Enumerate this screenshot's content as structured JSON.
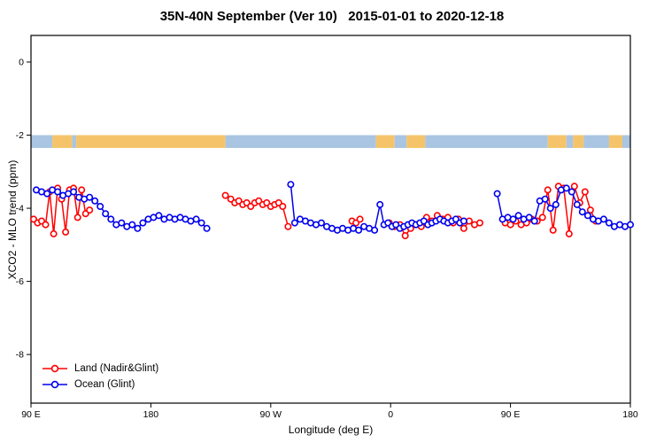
{
  "chart_data": {
    "type": "line",
    "title": "35N-40N September (Ver 10)   2015-01-01 to 2020-12-18",
    "xlabel": "Longitude (deg E)",
    "ylabel": "XCO2 - MLO trend (ppm)",
    "xlim": [
      90,
      540
    ],
    "ylim": [
      -9.33,
      0.727
    ],
    "grid": false,
    "x_ticks": [
      {
        "value": 90,
        "label": "90 E"
      },
      {
        "value": 180,
        "label": "180"
      },
      {
        "value": 270,
        "label": "90 W"
      },
      {
        "value": 360,
        "label": "0"
      },
      {
        "value": 450,
        "label": "90 E"
      },
      {
        "value": 540,
        "label": "180"
      }
    ],
    "y_ticks": [
      {
        "value": 0,
        "label": "0"
      },
      {
        "value": -2,
        "label": "-2"
      },
      {
        "value": -4,
        "label": "-4"
      },
      {
        "value": -6,
        "label": "-6"
      },
      {
        "value": -8,
        "label": "-8"
      }
    ],
    "band": {
      "y_top": -2.0,
      "y_bottom": -2.35,
      "colors": {
        "land": "#f5c46a",
        "ocean": "#a9c5e2"
      },
      "segments": [
        {
          "from": 90,
          "to": 106,
          "type": "ocean"
        },
        {
          "from": 106,
          "to": 121,
          "type": "land"
        },
        {
          "from": 121,
          "to": 124,
          "type": "ocean"
        },
        {
          "from": 124,
          "to": 236,
          "type": "land"
        },
        {
          "from": 236,
          "to": 349,
          "type": "ocean"
        },
        {
          "from": 349,
          "to": 363,
          "type": "land"
        },
        {
          "from": 363,
          "to": 372,
          "type": "ocean"
        },
        {
          "from": 372,
          "to": 386,
          "type": "land"
        },
        {
          "from": 386,
          "to": 478,
          "type": "ocean"
        },
        {
          "from": 478,
          "to": 492,
          "type": "land"
        },
        {
          "from": 492,
          "to": 497,
          "type": "ocean"
        },
        {
          "from": 497,
          "to": 505,
          "type": "land"
        },
        {
          "from": 505,
          "to": 524,
          "type": "ocean"
        },
        {
          "from": 524,
          "to": 534,
          "type": "land"
        },
        {
          "from": 534,
          "to": 540,
          "type": "ocean"
        }
      ]
    },
    "series": [
      {
        "name": "Land (Nadir&Glint)",
        "color": "#ff0000",
        "marker": "open-circle",
        "segments": [
          [
            [
              92,
              -4.3
            ],
            [
              95,
              -4.4
            ],
            [
              98,
              -4.35
            ],
            [
              101,
              -4.45
            ],
            [
              104,
              -3.55
            ],
            [
              107,
              -4.7
            ],
            [
              110,
              -3.45
            ],
            [
              113,
              -3.75
            ],
            [
              116,
              -4.65
            ],
            [
              119,
              -3.5
            ],
            [
              122,
              -3.45
            ],
            [
              125,
              -4.25
            ],
            [
              128,
              -3.5
            ],
            [
              131,
              -4.15
            ],
            [
              134,
              -4.05
            ]
          ],
          [
            [
              236,
              -3.65
            ],
            [
              240,
              -3.75
            ],
            [
              243,
              -3.85
            ],
            [
              246,
              -3.8
            ],
            [
              249,
              -3.9
            ],
            [
              252,
              -3.85
            ],
            [
              255,
              -3.95
            ],
            [
              258,
              -3.85
            ],
            [
              261,
              -3.8
            ],
            [
              264,
              -3.9
            ],
            [
              267,
              -3.85
            ],
            [
              270,
              -3.95
            ],
            [
              273,
              -3.9
            ],
            [
              276,
              -3.85
            ],
            [
              279,
              -3.95
            ],
            [
              283,
              -4.5
            ]
          ],
          [
            [
              331,
              -4.35
            ],
            [
              334,
              -4.4
            ],
            [
              337,
              -4.3
            ]
          ],
          [
            [
              359,
              -4.4
            ],
            [
              363,
              -4.5
            ],
            [
              367,
              -4.45
            ],
            [
              371,
              -4.75
            ],
            [
              375,
              -4.55
            ],
            [
              379,
              -4.45
            ],
            [
              383,
              -4.5
            ]
          ],
          [
            [
              387,
              -4.25
            ],
            [
              391,
              -4.35
            ],
            [
              395,
              -4.2
            ],
            [
              399,
              -4.3
            ],
            [
              403,
              -4.25
            ],
            [
              407,
              -4.4
            ],
            [
              411,
              -4.3
            ],
            [
              415,
              -4.55
            ],
            [
              419,
              -4.35
            ],
            [
              423,
              -4.45
            ],
            [
              427,
              -4.4
            ]
          ],
          [
            [
              446,
              -4.4
            ],
            [
              450,
              -4.45
            ],
            [
              454,
              -4.35
            ],
            [
              458,
              -4.45
            ],
            [
              462,
              -4.4
            ],
            [
              466,
              -4.3
            ],
            [
              470,
              -4.35
            ],
            [
              474,
              -4.25
            ],
            [
              478,
              -3.5
            ],
            [
              482,
              -4.6
            ],
            [
              486,
              -3.4
            ],
            [
              490,
              -3.45
            ],
            [
              494,
              -4.7
            ],
            [
              498,
              -3.4
            ],
            [
              502,
              -3.85
            ],
            [
              506,
              -3.55
            ],
            [
              510,
              -4.05
            ],
            [
              514,
              -4.35
            ]
          ]
        ]
      },
      {
        "name": "Ocean (Glint)",
        "color": "#0000ee",
        "marker": "open-circle",
        "segments": [
          [
            [
              94,
              -3.5
            ],
            [
              98,
              -3.55
            ],
            [
              102,
              -3.6
            ],
            [
              106,
              -3.5
            ],
            [
              110,
              -3.55
            ],
            [
              114,
              -3.65
            ],
            [
              118,
              -3.6
            ],
            [
              122,
              -3.55
            ],
            [
              126,
              -3.7
            ],
            [
              130,
              -3.75
            ],
            [
              134,
              -3.7
            ],
            [
              138,
              -3.8
            ],
            [
              142,
              -3.95
            ],
            [
              146,
              -4.15
            ],
            [
              150,
              -4.3
            ],
            [
              154,
              -4.45
            ],
            [
              158,
              -4.4
            ],
            [
              162,
              -4.5
            ],
            [
              166,
              -4.45
            ],
            [
              170,
              -4.55
            ],
            [
              174,
              -4.4
            ],
            [
              178,
              -4.3
            ],
            [
              182,
              -4.25
            ],
            [
              186,
              -4.2
            ],
            [
              190,
              -4.3
            ],
            [
              194,
              -4.25
            ],
            [
              198,
              -4.3
            ],
            [
              202,
              -4.25
            ],
            [
              206,
              -4.3
            ],
            [
              210,
              -4.35
            ],
            [
              214,
              -4.3
            ],
            [
              218,
              -4.4
            ],
            [
              222,
              -4.55
            ]
          ],
          [
            [
              285,
              -3.35
            ],
            [
              288,
              -4.4
            ],
            [
              292,
              -4.3
            ],
            [
              296,
              -4.35
            ],
            [
              300,
              -4.4
            ],
            [
              304,
              -4.45
            ],
            [
              308,
              -4.4
            ],
            [
              312,
              -4.5
            ],
            [
              316,
              -4.55
            ],
            [
              320,
              -4.6
            ],
            [
              324,
              -4.55
            ],
            [
              328,
              -4.6
            ],
            [
              332,
              -4.55
            ],
            [
              336,
              -4.6
            ],
            [
              340,
              -4.5
            ],
            [
              344,
              -4.55
            ],
            [
              348,
              -4.6
            ],
            [
              352,
              -3.9
            ],
            [
              355,
              -4.45
            ],
            [
              358,
              -4.4
            ],
            [
              361,
              -4.5
            ],
            [
              364,
              -4.45
            ],
            [
              367,
              -4.55
            ],
            [
              370,
              -4.5
            ],
            [
              373,
              -4.45
            ],
            [
              376,
              -4.4
            ],
            [
              379,
              -4.45
            ],
            [
              382,
              -4.4
            ],
            [
              385,
              -4.35
            ],
            [
              388,
              -4.45
            ],
            [
              391,
              -4.4
            ],
            [
              394,
              -4.35
            ],
            [
              397,
              -4.3
            ],
            [
              400,
              -4.35
            ],
            [
              403,
              -4.4
            ],
            [
              406,
              -4.35
            ],
            [
              409,
              -4.3
            ],
            [
              412,
              -4.4
            ],
            [
              415,
              -4.35
            ]
          ],
          [
            [
              440,
              -3.6
            ],
            [
              444,
              -4.3
            ],
            [
              448,
              -4.25
            ],
            [
              452,
              -4.3
            ],
            [
              456,
              -4.2
            ],
            [
              460,
              -4.3
            ],
            [
              464,
              -4.25
            ],
            [
              468,
              -4.35
            ],
            [
              472,
              -3.8
            ],
            [
              476,
              -3.75
            ],
            [
              480,
              -4.0
            ],
            [
              484,
              -3.9
            ],
            [
              488,
              -3.5
            ],
            [
              492,
              -3.45
            ],
            [
              496,
              -3.55
            ],
            [
              500,
              -3.9
            ],
            [
              504,
              -4.1
            ],
            [
              508,
              -4.2
            ],
            [
              512,
              -4.3
            ],
            [
              516,
              -4.35
            ],
            [
              520,
              -4.3
            ],
            [
              524,
              -4.4
            ],
            [
              528,
              -4.5
            ],
            [
              532,
              -4.45
            ],
            [
              536,
              -4.5
            ],
            [
              540,
              -4.45
            ]
          ]
        ]
      }
    ],
    "legend": {
      "position": "bottom-left",
      "entries": [
        {
          "label": "Land (Nadir&Glint)",
          "color": "#ff0000"
        },
        {
          "label": "Ocean (Glint)",
          "color": "#0000ee"
        }
      ]
    }
  }
}
